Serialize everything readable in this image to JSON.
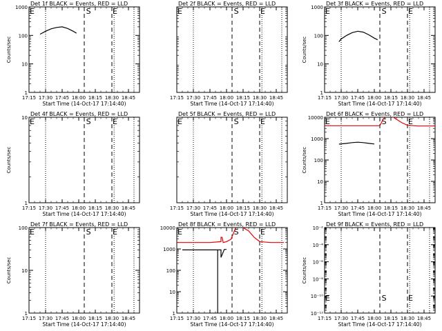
{
  "figure": {
    "background": "#ffffff",
    "axis_color": "#000000",
    "events_color": "#000000",
    "lld_color": "#e00000"
  },
  "chart_data": [
    {
      "type": "line",
      "panel": 1,
      "title": "Det 1f BLACK = Events, RED = LLD",
      "xlabel": "Start Time (14-Oct-17 17:14:40)",
      "ylabel": "Counts/sec",
      "xlim": [
        "17:15",
        "18:55"
      ],
      "yscale": "log",
      "ylim": [
        1,
        1000
      ],
      "xticks": [
        "17:15",
        "17:30",
        "17:45",
        "18:00",
        "18:15",
        "18:30",
        "18:45"
      ],
      "yticks": [
        "1",
        "10",
        "100",
        "1000"
      ],
      "dotted_lines": [
        "17:30",
        "18:32",
        "18:50"
      ],
      "dashed_lines": [
        "18:05",
        "18:30"
      ],
      "markers": [
        {
          "label": "E",
          "x": "17:15"
        },
        {
          "label": "S",
          "x": "18:06"
        },
        {
          "label": "E",
          "x": "18:30"
        }
      ],
      "series": [
        {
          "color": "black",
          "x": [
            "17:25",
            "17:30",
            "17:35",
            "17:40",
            "17:45",
            "17:50",
            "17:55",
            "17:58"
          ],
          "y": [
            110,
            140,
            170,
            190,
            200,
            175,
            140,
            120
          ]
        }
      ]
    },
    {
      "type": "line",
      "panel": 2,
      "title": "Det 2f BLACK = Events, RED = LLD",
      "xlabel": "Start Time (14-Oct-17 17:14:40)",
      "ylabel": "",
      "xlim": [
        "17:15",
        "18:55"
      ],
      "yscale": "log",
      "ylim": [
        1,
        1000
      ],
      "xticks": [
        "17:15",
        "17:30",
        "17:45",
        "18:00",
        "18:15",
        "18:30",
        "18:45"
      ],
      "yticks": [],
      "dotted_lines": [
        "17:30",
        "18:32",
        "18:50"
      ],
      "dashed_lines": [
        "18:05",
        "18:30"
      ],
      "markers": [
        {
          "label": "E",
          "x": "17:15"
        },
        {
          "label": "S",
          "x": "18:06"
        },
        {
          "label": "E",
          "x": "18:30"
        }
      ],
      "series": []
    },
    {
      "type": "line",
      "panel": 3,
      "title": "Det 3f BLACK = Events, RED = LLD",
      "xlabel": "Start Time (14-Oct-17 17:14:40)",
      "ylabel": "Counts/sec",
      "xlim": [
        "17:15",
        "18:55"
      ],
      "yscale": "log",
      "ylim": [
        1,
        1000
      ],
      "xticks": [
        "17:15",
        "17:30",
        "17:45",
        "18:00",
        "18:15",
        "18:30",
        "18:45"
      ],
      "yticks": [
        "1",
        "10",
        "100",
        "1000"
      ],
      "dotted_lines": [
        "17:30",
        "18:32",
        "18:50"
      ],
      "dashed_lines": [
        "18:05",
        "18:30"
      ],
      "markers": [
        {
          "label": "E",
          "x": "17:15"
        },
        {
          "label": "S",
          "x": "18:06"
        },
        {
          "label": "E",
          "x": "18:30"
        }
      ],
      "series": [
        {
          "color": "black",
          "x": [
            "17:28",
            "17:30",
            "17:35",
            "17:40",
            "17:45",
            "17:50",
            "17:55",
            "18:00",
            "18:03"
          ],
          "y": [
            60,
            75,
            100,
            125,
            140,
            130,
            105,
            80,
            70
          ]
        }
      ]
    },
    {
      "type": "line",
      "panel": 4,
      "title": "Det 4f BLACK = Events, RED = LLD",
      "xlabel": "Start Time (14-Oct-17 17:14:40)",
      "ylabel": "Counts/sec",
      "xlim": [
        "17:15",
        "18:55"
      ],
      "yscale": "log",
      "ylim": [
        1,
        10
      ],
      "xticks": [
        "17:15",
        "17:30",
        "17:45",
        "18:00",
        "18:15",
        "18:30",
        "18:45"
      ],
      "yticks": [
        "1",
        "10"
      ],
      "dotted_lines": [
        "17:30",
        "18:32",
        "18:50"
      ],
      "dashed_lines": [
        "18:05",
        "18:30"
      ],
      "markers": [
        {
          "label": "E",
          "x": "17:15"
        },
        {
          "label": "S",
          "x": "18:06"
        },
        {
          "label": "E",
          "x": "18:30"
        }
      ],
      "series": []
    },
    {
      "type": "line",
      "panel": 5,
      "title": "Det 5f BLACK = Events, RED = LLD",
      "xlabel": "Start Time (14-Oct-17 17:14:40)",
      "ylabel": "",
      "xlim": [
        "17:15",
        "18:55"
      ],
      "yscale": "log",
      "ylim": [
        1,
        10
      ],
      "xticks": [
        "17:15",
        "17:30",
        "17:45",
        "18:00",
        "18:15",
        "18:30",
        "18:45"
      ],
      "yticks": [],
      "dotted_lines": [
        "17:30",
        "18:32",
        "18:50"
      ],
      "dashed_lines": [
        "18:05",
        "18:30"
      ],
      "markers": [
        {
          "label": "E",
          "x": "17:15"
        },
        {
          "label": "S",
          "x": "18:06"
        },
        {
          "label": "E",
          "x": "18:30"
        }
      ],
      "series": []
    },
    {
      "type": "line",
      "panel": 6,
      "title": "Det 6f BLACK = Events, RED = LLD",
      "xlabel": "Start Time (14-Oct-17 17:14:40)",
      "ylabel": "Counts/sec",
      "xlim": [
        "17:15",
        "18:55"
      ],
      "yscale": "log",
      "ylim": [
        1,
        10000
      ],
      "xticks": [
        "17:15",
        "17:30",
        "17:45",
        "18:00",
        "18:15",
        "18:30",
        "18:45"
      ],
      "yticks": [
        "1",
        "10",
        "100",
        "1000",
        "10000"
      ],
      "dotted_lines": [
        "17:30",
        "18:32",
        "18:50"
      ],
      "dashed_lines": [
        "18:05",
        "18:30"
      ],
      "markers": [
        {
          "label": "E",
          "x": "17:15"
        },
        {
          "label": "S",
          "x": "18:06"
        },
        {
          "label": "E",
          "x": "18:30"
        }
      ],
      "series": [
        {
          "color": "black",
          "x": [
            "17:28",
            "17:35",
            "17:40",
            "17:45",
            "17:50",
            "17:55",
            "18:00"
          ],
          "y": [
            550,
            600,
            650,
            680,
            650,
            600,
            560
          ]
        },
        {
          "color": "red",
          "x": [
            "17:15",
            "17:30",
            "17:45",
            "18:00",
            "18:05",
            "18:08",
            "18:12",
            "18:15",
            "18:20",
            "18:25",
            "18:30",
            "18:40",
            "18:55"
          ],
          "y": [
            4000,
            4000,
            4000,
            4000,
            4000,
            8000,
            14000,
            12000,
            8000,
            5500,
            4200,
            3900,
            3900
          ]
        }
      ]
    },
    {
      "type": "line",
      "panel": 7,
      "title": "Det 7f BLACK = Events, RED = LLD",
      "xlabel": "Start Time (14-Oct-17 17:14:40)",
      "ylabel": "Counts/sec",
      "xlim": [
        "17:15",
        "18:55"
      ],
      "yscale": "log",
      "ylim": [
        1,
        100
      ],
      "xticks": [
        "17:15",
        "17:30",
        "17:45",
        "18:00",
        "18:15",
        "18:30",
        "18:45"
      ],
      "yticks": [
        "1",
        "10",
        "100"
      ],
      "dotted_lines": [
        "17:30",
        "18:32",
        "18:50"
      ],
      "dashed_lines": [
        "18:05",
        "18:30"
      ],
      "markers": [
        {
          "label": "E",
          "x": "17:15"
        },
        {
          "label": "S",
          "x": "18:06"
        },
        {
          "label": "E",
          "x": "18:30"
        }
      ],
      "series": []
    },
    {
      "type": "line",
      "panel": 8,
      "title": "Det 8f BLACK = Events, RED = LLD",
      "xlabel": "Start Time (14-Oct-17 17:14:40)",
      "ylabel": "",
      "xlim": [
        "17:15",
        "18:55"
      ],
      "yscale": "log",
      "ylim": [
        1,
        10000
      ],
      "xticks": [
        "17:15",
        "17:30",
        "17:45",
        "18:00",
        "18:15",
        "18:30",
        "18:45"
      ],
      "yticks": [
        "1",
        "10",
        "100",
        "1000",
        "10000"
      ],
      "dotted_lines": [
        "17:30",
        "18:32",
        "18:50"
      ],
      "dashed_lines": [
        "18:05",
        "18:30"
      ],
      "markers": [
        {
          "label": "E",
          "x": "17:15"
        },
        {
          "label": "S",
          "x": "18:06"
        },
        {
          "label": "E",
          "x": "18:30"
        }
      ],
      "series": [
        {
          "color": "black",
          "x": [
            "17:20",
            "17:30",
            "17:45",
            "17:52",
            "17:52",
            "17:52",
            "17:52",
            "17:55",
            "17:55",
            "17:58",
            "18:00"
          ],
          "y": [
            900,
            900,
            900,
            900,
            1,
            1,
            900,
            900,
            400,
            950,
            950
          ]
        },
        {
          "color": "red",
          "x": [
            "17:15",
            "17:30",
            "17:45",
            "17:55",
            "17:55",
            "17:56",
            "17:57",
            "18:00",
            "18:04",
            "18:08",
            "18:12",
            "18:15",
            "18:20",
            "18:25",
            "18:30",
            "18:40",
            "18:52"
          ],
          "y": [
            2000,
            2000,
            2000,
            2200,
            3500,
            3500,
            2000,
            2200,
            2800,
            9000,
            14000,
            10000,
            7000,
            3500,
            2200,
            2000,
            2000
          ]
        }
      ]
    },
    {
      "type": "line",
      "panel": 9,
      "title": "Det 9f BLACK = Events, RED = LLD",
      "xlabel": "Start Time (14-Oct-17 17:14:40)",
      "ylabel": "Counts/sec",
      "xlim": [
        "17:15",
        "18:55"
      ],
      "yscale": "log",
      "ylim": [
        1e-12,
        0.01
      ],
      "xticks": [
        "17:15",
        "17:30",
        "17:45",
        "18:00",
        "18:15",
        "18:30",
        "18:45"
      ],
      "yticks": [
        "10⁻¹²",
        "10⁻¹⁰",
        "10⁻⁸",
        "10⁻⁶",
        "10⁻⁴",
        "10⁻²"
      ],
      "dotted_lines": [
        "17:30",
        "18:32",
        "18:50"
      ],
      "dashed_lines": [
        "18:05",
        "18:30"
      ],
      "markers": [
        {
          "label": "E",
          "x": "17:15"
        },
        {
          "label": "S",
          "x": "18:06"
        },
        {
          "label": "E",
          "x": "18:30"
        }
      ],
      "series": []
    }
  ]
}
